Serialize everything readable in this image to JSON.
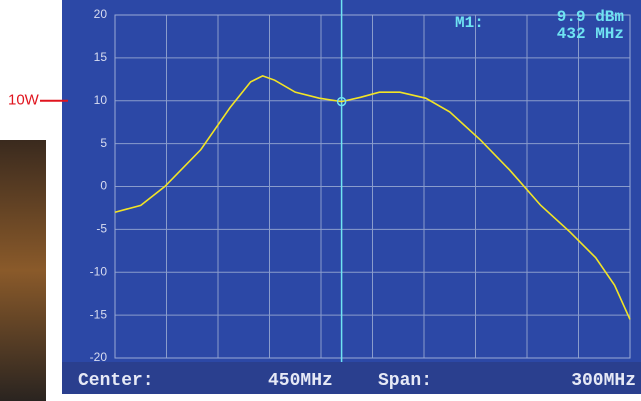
{
  "chart_data": {
    "type": "line",
    "series": [
      {
        "color": "#f2e426",
        "x": [
          300,
          315,
          329,
          350,
          367,
          379,
          386,
          393,
          405,
          419,
          432,
          443,
          454,
          466,
          481,
          495,
          513,
          530,
          548,
          565,
          580,
          591,
          600
        ],
        "values": [
          -3,
          -2.2,
          0,
          4.3,
          9.2,
          12.2,
          12.9,
          12.4,
          11,
          10.3,
          9.9,
          10.4,
          11,
          11,
          10.3,
          8.7,
          5.4,
          1.9,
          -2.2,
          -5.3,
          -8.3,
          -11.5,
          -15.5
        ]
      }
    ],
    "xlim": [
      300,
      600
    ],
    "xticks": [
      300,
      330,
      360,
      390,
      420,
      450,
      480,
      510,
      540,
      570,
      600
    ],
    "ylim": [
      -20,
      20
    ],
    "yticks": [
      -20,
      -15,
      -10,
      -5,
      0,
      5,
      10,
      15,
      20
    ],
    "grid": true,
    "marker": {
      "label": "M1:",
      "level_text": "9.9 dBm",
      "freq_text": "432 MHz",
      "x": 432,
      "y": 9.9,
      "color": "#6fe3f2"
    },
    "annotation": {
      "text": "10W",
      "y": 10,
      "color": "#e0141e"
    },
    "footer": {
      "center_label": "Center:",
      "center": "450MHz",
      "span_label": "Span:",
      "span": "300MHz"
    }
  }
}
